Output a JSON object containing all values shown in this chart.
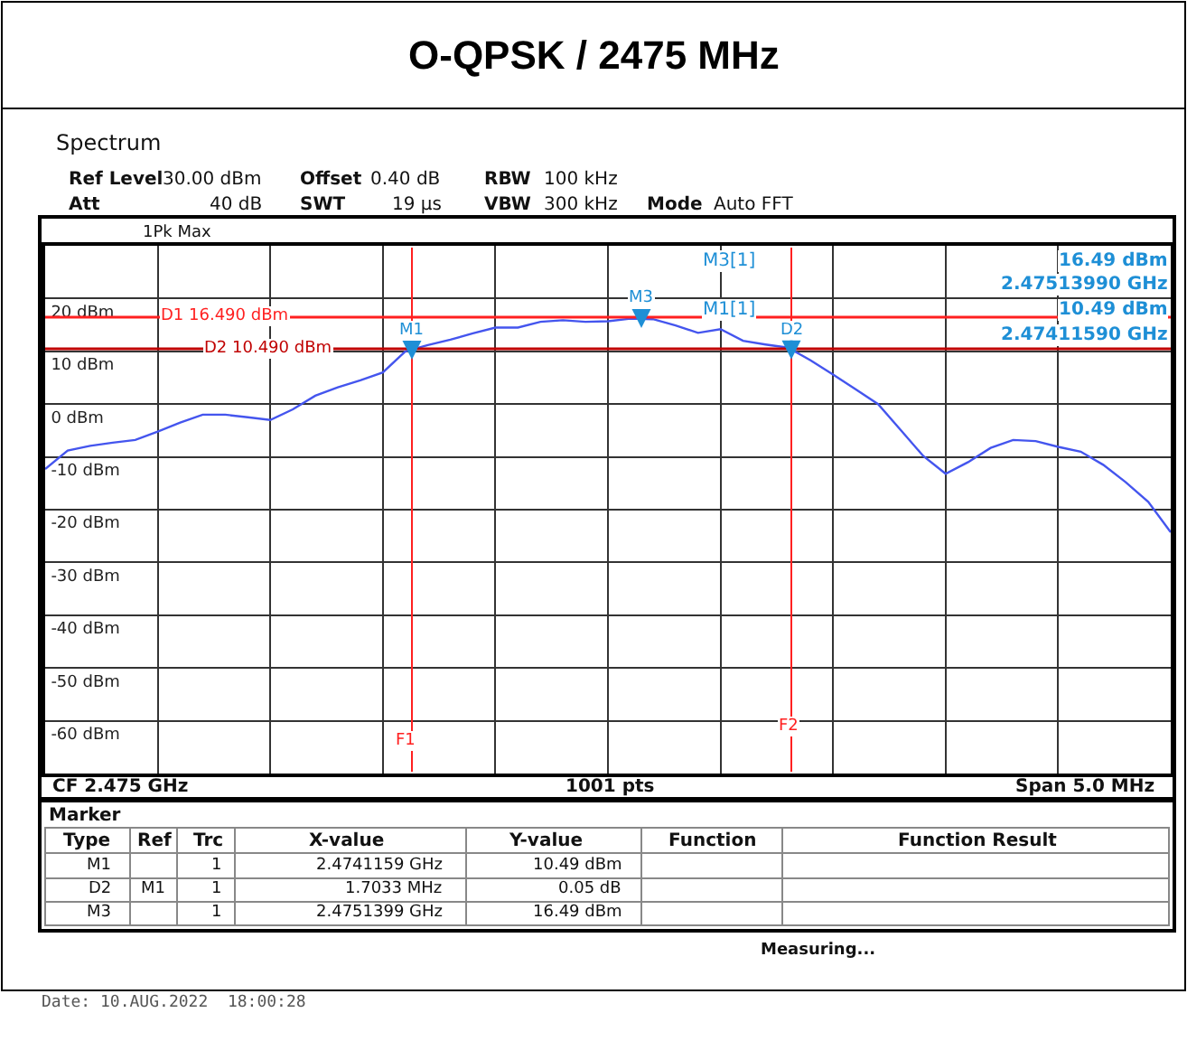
{
  "chart_data": {
    "type": "line",
    "title": "O-QPSK / 2475 MHz",
    "categories": [
      null,
      null,
      null,
      null,
      null,
      null,
      null,
      null,
      null,
      null,
      null,
      null,
      null,
      null,
      null,
      null,
      null,
      null,
      null,
      null,
      null,
      null,
      null,
      null,
      null,
      null,
      null,
      null,
      null,
      null,
      null,
      null,
      null,
      null,
      null,
      null,
      null,
      null,
      null,
      null,
      null,
      null,
      null,
      null,
      null,
      null,
      null,
      null,
      null,
      null,
      null
    ],
    "ylim": [
      -70,
      30
    ],
    "yticks": [
      {
        "value": -60,
        "label": "-60 dBm"
      },
      {
        "value": -50,
        "label": "-50 dBm"
      },
      {
        "value": -40,
        "label": "-40 dBm"
      },
      {
        "value": -30,
        "label": "-30 dBm"
      },
      {
        "value": -20,
        "label": "-20 dBm"
      },
      {
        "value": -10,
        "label": "-10 dBm"
      },
      {
        "value": 0,
        "label": "0 dBm"
      },
      {
        "value": 10,
        "label": "10 dBm"
      },
      {
        "value": 20,
        "label": "20 dBm"
      }
    ],
    "tick_labels": "y",
    "grid": true,
    "series": [
      {
        "color": "#4455ee",
        "line_style": "solid",
        "values": [
          -12.3,
          -8.8,
          -7.9,
          -7.3,
          -6.8,
          -5.2,
          -3.5,
          -2.0,
          -2.0,
          -2.5,
          -3.0,
          -1.0,
          1.6,
          3.2,
          4.5,
          6.0,
          10.0,
          11.2,
          12.2,
          13.4,
          14.5,
          14.5,
          15.6,
          15.9,
          15.6,
          15.7,
          16.2,
          16.1,
          14.9,
          13.5,
          14.2,
          12.0,
          11.3,
          10.7,
          8.3,
          5.6,
          2.8,
          0.0,
          -4.9,
          -9.8,
          -13.2,
          -11.0,
          -8.3,
          -6.8,
          -7.0,
          -8.1,
          -9.0,
          -11.5,
          -14.8,
          -18.5,
          -24.3
        ]
      }
    ],
    "ref_lines": [
      {
        "axis": "y",
        "value": 16.49,
        "label": "D1 16.490 dBm",
        "color": "#ff2020"
      },
      {
        "axis": "y",
        "value": 10.49,
        "label": "D2 10.490 dBm",
        "color": "#c00000"
      }
    ],
    "annotations": [
      "Spectrum",
      "Ref Level",
      "30.00 dBm",
      "Offset",
      "0.40 dB",
      "RBW",
      "100 kHz",
      "Att",
      "40 dB",
      "SWT",
      "19 µs",
      "VBW",
      "300 kHz",
      "Mode",
      "Auto FFT",
      "1Pk Max",
      "M3[1]",
      "16.49 dBm",
      "2.47513990 GHz",
      "M1[1]",
      "10.49 dBm",
      "2.47411590 GHz",
      {
        "text": "M3",
        "y": 16.49
      },
      {
        "text": "M1",
        "y": 10.49
      },
      {
        "text": "D2",
        "y": 10.54
      },
      "F2",
      "F1",
      "CF 2.475 GHz",
      "1001 pts",
      "Span 5.0 MHz",
      "Marker",
      "Type",
      "Ref",
      "Trc",
      "X-value",
      "Y-value",
      "Function",
      "Function Result",
      "M1",
      "1",
      "2.4741159 GHz",
      "10.49 dBm",
      "D2",
      "M1",
      "1",
      "1.7033 MHz",
      "0.05 dB",
      "M3",
      "1",
      "2.4751399 GHz",
      "16.49 dBm",
      "Measuring...",
      "Date: 10.AUG.2022  18:00:28"
    ]
  }
}
